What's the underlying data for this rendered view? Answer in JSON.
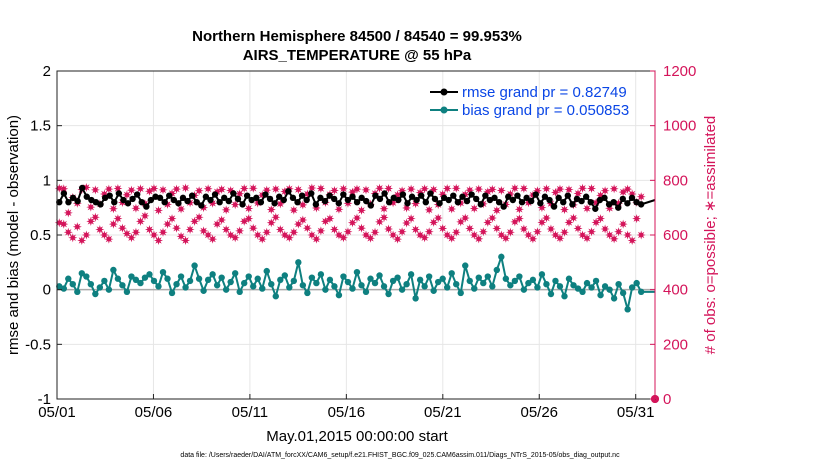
{
  "chart_data": {
    "type": "line",
    "title_line1": "Northern Hemisphere 84500 / 84540 = 99.953%",
    "title_line2": "AIRS_TEMPERATURE @ 55 hPa",
    "xlabel": "May.01,2015 00:00:00 start",
    "ylabel_left": "rmse and bias (model - observation)",
    "ylabel_right": "# of obs: o=possible; ∗=assimilated",
    "footer": "data file: /Users/raeder/DAI/ATM_forcXX/CAM6_setup/f.e21.FHIST_BGC.f09_025.CAM6assim.011/Diags_NTrS_2015-05/obs_diag_output.nc",
    "x_tick_labels": [
      "05/01",
      "05/06",
      "05/11",
      "05/16",
      "05/21",
      "05/26",
      "05/31"
    ],
    "x_tick_days": [
      0,
      5,
      10,
      15,
      20,
      25,
      30
    ],
    "xlim": [
      0,
      31
    ],
    "ylim_left": [
      -1,
      2
    ],
    "ylim_right": [
      0,
      1200
    ],
    "y_left_ticks": [
      "-1",
      "-0.5",
      "0",
      "0.5",
      "1",
      "1.5",
      "2"
    ],
    "y_left_tick_values": [
      -1,
      -0.5,
      0,
      0.5,
      1,
      1.5,
      2
    ],
    "y_right_ticks": [
      "0",
      "200",
      "400",
      "600",
      "800",
      "1000",
      "1200"
    ],
    "y_right_tick_values": [
      0,
      200,
      400,
      600,
      800,
      1000,
      1200
    ],
    "grid": true,
    "legend_position": "top-right",
    "series": [
      {
        "name": "rmse grand pr = 0.82749",
        "axis": "left",
        "color": "#000000",
        "marker": "circle",
        "values": [
          0.8,
          0.88,
          0.8,
          0.84,
          0.81,
          0.93,
          0.85,
          0.82,
          0.8,
          0.78,
          0.84,
          0.86,
          0.8,
          0.88,
          0.82,
          0.79,
          0.83,
          0.87,
          0.8,
          0.76,
          0.82,
          0.85,
          0.84,
          0.8,
          0.86,
          0.82,
          0.79,
          0.84,
          0.81,
          0.86,
          0.8,
          0.77,
          0.85,
          0.82,
          0.87,
          0.8,
          0.84,
          0.81,
          0.88,
          0.83,
          0.78,
          0.86,
          0.82,
          0.84,
          0.8,
          0.87,
          0.83,
          0.79,
          0.85,
          0.82,
          0.9,
          0.84,
          0.8,
          0.86,
          0.82,
          0.88,
          0.78,
          0.84,
          0.81,
          0.86,
          0.83,
          0.79,
          0.87,
          0.82,
          0.85,
          0.8,
          0.84,
          0.81,
          0.77,
          0.86,
          0.83,
          0.88,
          0.8,
          0.84,
          0.82,
          0.87,
          0.79,
          0.85,
          0.82,
          0.86,
          0.8,
          0.88,
          0.83,
          0.79,
          0.84,
          0.82,
          0.86,
          0.8,
          0.85,
          0.81,
          0.87,
          0.83,
          0.78,
          0.86,
          0.82,
          0.84,
          0.8,
          0.76,
          0.85,
          0.82,
          0.86,
          0.8,
          0.84,
          0.81,
          0.87,
          0.79,
          0.85,
          0.82,
          0.76,
          0.84,
          0.8,
          0.86,
          0.78,
          0.83,
          0.81,
          0.85,
          0.8,
          0.74,
          0.82,
          0.84,
          0.78,
          0.8,
          0.75,
          0.83,
          0.79,
          0.84,
          0.8,
          0.78
        ],
        "final_value": 0.82
      },
      {
        "name": "bias grand pr = 0.050853",
        "axis": "left",
        "color": "#0e8080",
        "marker": "circle",
        "values": [
          0.03,
          0.01,
          0.1,
          0.05,
          -0.02,
          0.15,
          0.12,
          0.05,
          -0.04,
          0.02,
          0.08,
          0.0,
          0.18,
          0.1,
          0.04,
          -0.02,
          0.12,
          0.09,
          0.06,
          0.11,
          0.14,
          0.08,
          0.03,
          0.16,
          0.1,
          -0.03,
          0.05,
          0.12,
          0.02,
          0.08,
          0.22,
          0.1,
          -0.01,
          0.09,
          0.14,
          0.04,
          0.11,
          0.0,
          0.07,
          0.15,
          -0.02,
          0.06,
          0.12,
          0.03,
          0.1,
          0.01,
          0.17,
          0.05,
          -0.06,
          0.09,
          0.13,
          0.02,
          0.08,
          0.25,
          0.04,
          -0.03,
          0.11,
          0.06,
          0.14,
          0.0,
          0.09,
          0.03,
          -0.05,
          0.12,
          0.07,
          0.01,
          0.16,
          0.04,
          -0.02,
          0.1,
          0.06,
          0.13,
          0.03,
          -0.04,
          0.08,
          0.11,
          0.0,
          0.05,
          0.14,
          -0.08,
          0.09,
          0.03,
          0.12,
          -0.01,
          0.07,
          0.1,
          0.02,
          0.15,
          0.05,
          -0.03,
          0.22,
          0.08,
          0.01,
          0.11,
          0.06,
          0.12,
          0.03,
          0.18,
          0.3,
          0.1,
          0.04,
          0.08,
          0.12,
          0.0,
          0.06,
          0.09,
          0.02,
          0.14,
          0.05,
          -0.04,
          0.08,
          0.03,
          -0.06,
          0.1,
          0.04,
          0.01,
          -0.02,
          0.06,
          0.02,
          0.08,
          -0.05,
          0.03,
          0.0,
          -0.08,
          0.05,
          -0.03,
          -0.18,
          0.02,
          0.06,
          -0.02
        ],
        "final_value": -0.02
      },
      {
        "name": "possible",
        "axis": "right",
        "color": "#d4145a",
        "marker": "star",
        "values": [
          771,
          769,
          681,
          737,
          716,
          766,
          774,
          702,
          765,
          714,
          750,
          768,
          696,
          770,
          719,
          747,
          764,
          698,
          769,
          715,
          760,
          770,
          690,
          765,
          712,
          752,
          768,
          695,
          772,
          718,
          745,
          762,
          700,
          769,
          716,
          758,
          767,
          692,
          763,
          711,
          751,
          770,
          697,
          771,
          717,
          746,
          764,
          693,
          768,
          714,
          759,
          769,
          691,
          766,
          710,
          750,
          772,
          699,
          770,
          719,
          748,
          763,
          694,
          769,
          716,
          757,
          768,
          690,
          765,
          713,
          752,
          771,
          696,
          770,
          718,
          747,
          762,
          699,
          768,
          715,
          755,
          769,
          692,
          766,
          711,
          749,
          770,
          695,
          771,
          717,
          748,
          764,
          697,
          768,
          714,
          758,
          767,
          690,
          763,
          712,
          750,
          771,
          694,
          770,
          718,
          746,
          762,
          700,
          769,
          715,
          756,
          768,
          693,
          766,
          710,
          752,
          771,
          697,
          770,
          718,
          745,
          762,
          698,
          769,
          716,
          757,
          768,
          750,
          720,
          740
        ],
        "final_value": 0
      },
      {
        "name": "assimilated",
        "axis": "right",
        "color": "#d4145a",
        "marker": "star",
        "values": [
          645,
          640,
          610,
          590,
          630,
          580,
          600,
          650,
          665,
          620,
          600,
          585,
          640,
          660,
          625,
          605,
          590,
          610,
          650,
          670,
          620,
          600,
          580,
          610,
          640,
          660,
          625,
          595,
          580,
          620,
          650,
          665,
          615,
          600,
          585,
          640,
          655,
          620,
          600,
          590,
          615,
          650,
          660,
          625,
          600,
          585,
          610,
          645,
          665,
          620,
          600,
          590,
          610,
          640,
          655,
          625,
          600,
          585,
          615,
          650,
          660,
          620,
          600,
          590,
          612,
          645,
          662,
          625,
          600,
          588,
          610,
          648,
          664,
          622,
          600,
          585,
          612,
          644,
          660,
          620,
          600,
          590,
          612,
          646,
          662,
          624,
          600,
          588,
          610,
          648,
          662,
          624,
          600,
          586,
          612,
          646,
          662,
          624,
          600,
          588,
          610,
          648,
          660,
          622,
          600,
          586,
          612,
          646,
          662,
          622,
          600,
          588,
          610,
          646,
          662,
          624,
          600,
          588,
          612,
          646,
          660,
          622,
          600,
          586,
          612,
          640,
          600,
          580,
          660,
          600
        ],
        "final_value": 0
      }
    ]
  }
}
